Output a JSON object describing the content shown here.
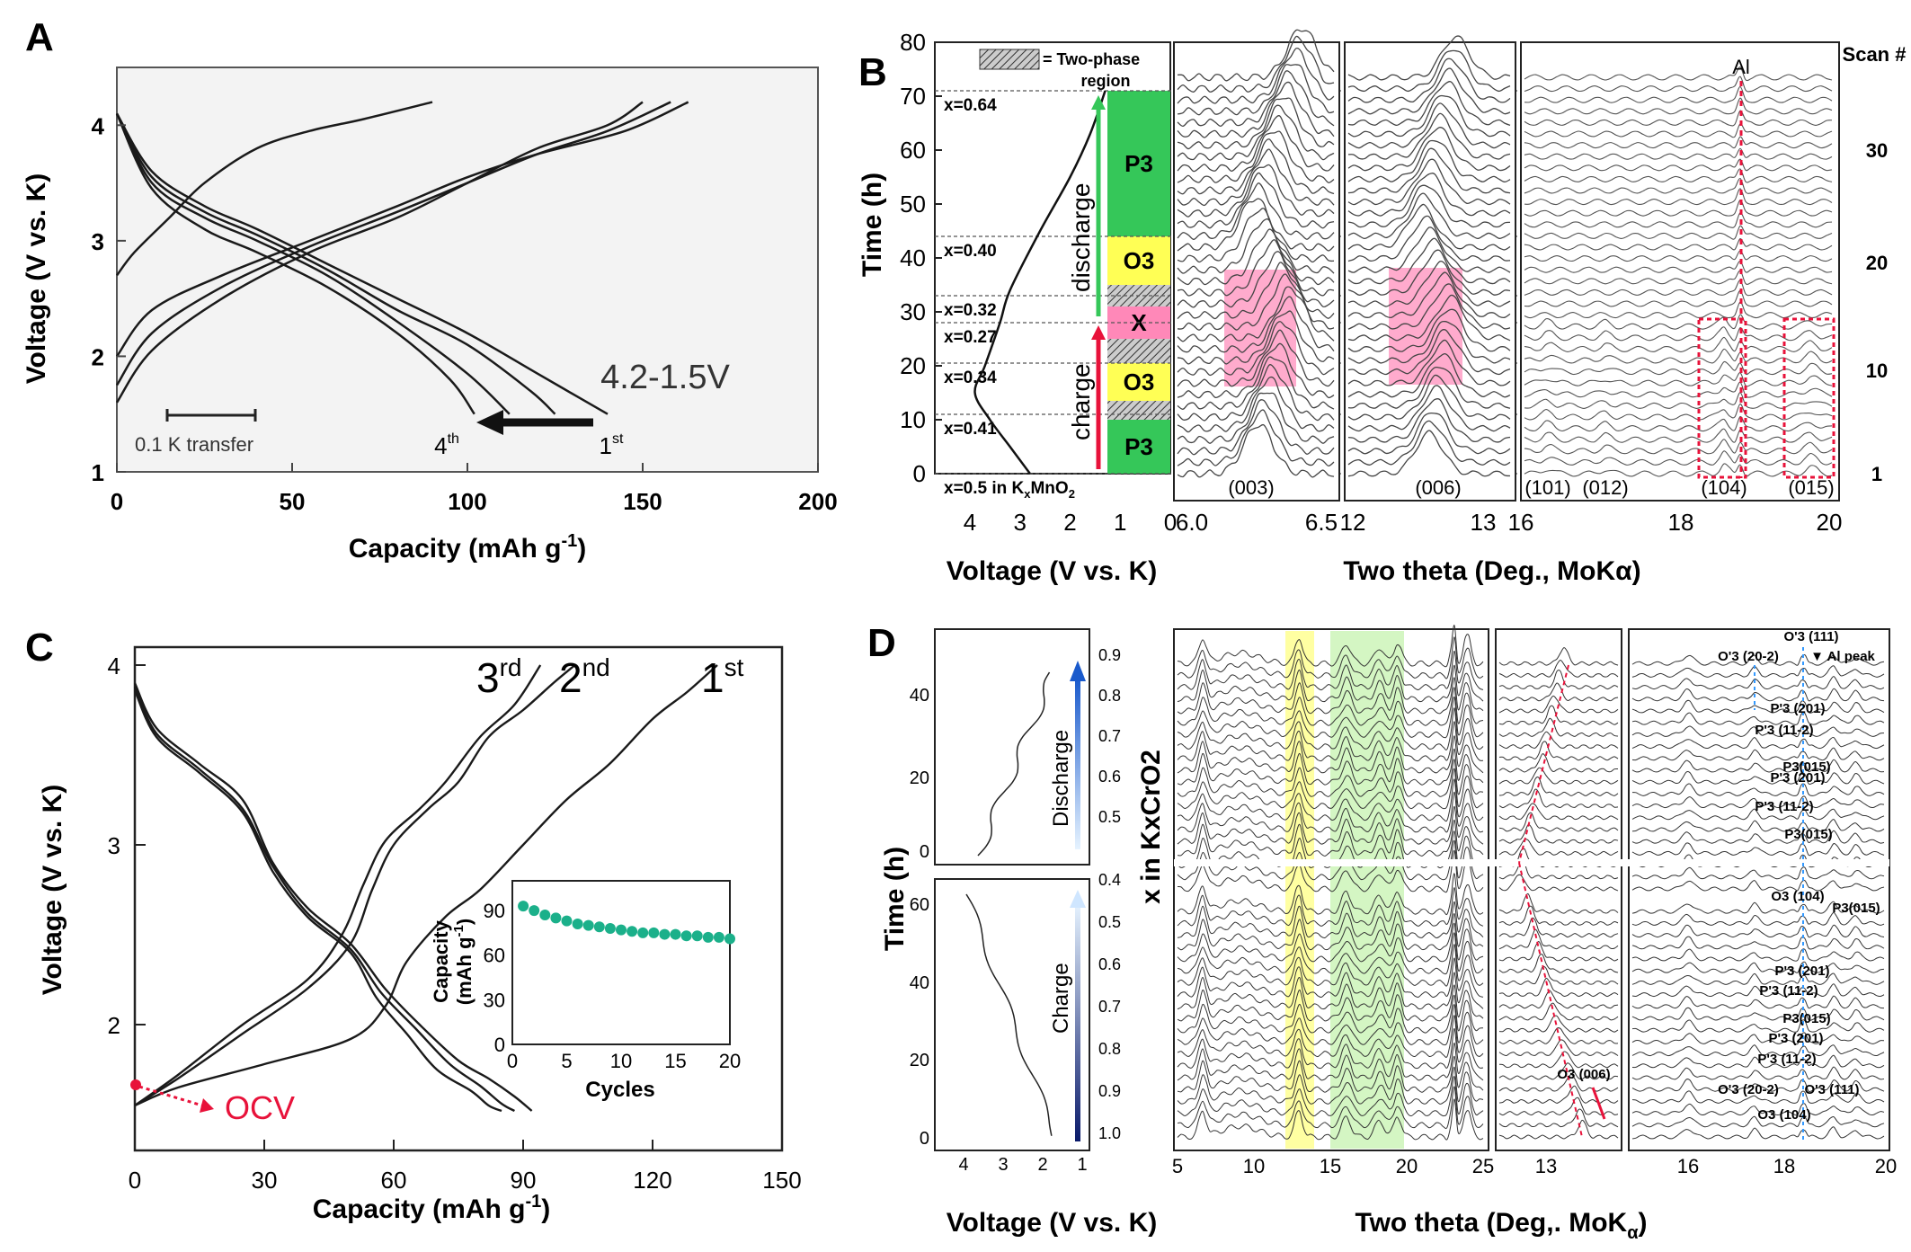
{
  "colors": {
    "line": "#1a1a1a",
    "red": "#e8123a",
    "green": "#35c759",
    "teal": "#1bb08a",
    "pink": "#ff88b8",
    "yellow": "#ffff55",
    "lightgreen": "#aaee88",
    "blue": "#1a5acc"
  },
  "chart_data": [
    {
      "panel": "A",
      "type": "line",
      "title": "",
      "xlabel": "Capacity (mAh g",
      "xlabel_sup": "-1",
      "xlabel_end": ")",
      "ylabel": "Voltage (V vs. K)",
      "xlim": [
        0,
        200
      ],
      "ylim": [
        1,
        4.5
      ],
      "xticks": [
        "0",
        "50",
        "100",
        "150",
        "200"
      ],
      "yticks": [
        "1",
        "2",
        "3",
        "4"
      ],
      "annotation_range": "4.2-1.5V",
      "scale_bar": "0.1 K transfer",
      "cycle_start": "4",
      "cycle_start_sup": "th",
      "cycle_end": "1",
      "cycle_end_sup": "st",
      "series": [
        {
          "name": "1st discharge",
          "x": [
            0,
            10,
            25,
            40,
            60,
            80,
            100,
            120,
            140
          ],
          "y": [
            4.1,
            3.6,
            3.3,
            3.1,
            2.8,
            2.5,
            2.2,
            1.85,
            1.5
          ]
        },
        {
          "name": "2nd discharge",
          "x": [
            0,
            10,
            25,
            40,
            60,
            80,
            100,
            118,
            125
          ],
          "y": [
            4.1,
            3.55,
            3.25,
            3.05,
            2.75,
            2.4,
            2.1,
            1.7,
            1.5
          ]
        },
        {
          "name": "3rd discharge",
          "x": [
            0,
            10,
            25,
            40,
            60,
            80,
            100,
            112
          ],
          "y": [
            4.1,
            3.5,
            3.2,
            3.0,
            2.7,
            2.3,
            1.85,
            1.5
          ]
        },
        {
          "name": "4th discharge",
          "x": [
            0,
            10,
            25,
            40,
            60,
            80,
            95,
            102
          ],
          "y": [
            4.1,
            3.45,
            3.1,
            2.9,
            2.6,
            2.2,
            1.8,
            1.5
          ]
        },
        {
          "name": "1st charge",
          "x": [
            0,
            10,
            30,
            55,
            80,
            100,
            120,
            145,
            163
          ],
          "y": [
            2.0,
            2.4,
            2.7,
            3.0,
            3.3,
            3.55,
            3.75,
            3.95,
            4.2
          ]
        },
        {
          "name": "2nd charge",
          "x": [
            0,
            10,
            30,
            55,
            80,
            100,
            120,
            140,
            158
          ],
          "y": [
            1.75,
            2.2,
            2.6,
            2.95,
            3.25,
            3.5,
            3.75,
            3.95,
            4.2
          ]
        },
        {
          "name": "3rd charge",
          "x": [
            0,
            10,
            30,
            55,
            80,
            100,
            120,
            140,
            150
          ],
          "y": [
            1.6,
            2.05,
            2.5,
            2.9,
            3.2,
            3.5,
            3.8,
            4.0,
            4.2
          ]
        },
        {
          "name": "4th charge",
          "x": [
            0,
            5,
            15,
            25,
            40,
            55,
            70,
            90
          ],
          "y": [
            2.7,
            2.9,
            3.2,
            3.5,
            3.8,
            3.95,
            4.05,
            4.2
          ]
        }
      ]
    },
    {
      "panel": "B",
      "type": "line",
      "ylabel": "Time (h)",
      "xlabel": "Voltage (V vs. K)",
      "xlabel_right": "Two theta (Deg., MoKα)",
      "right_label": "Scan #",
      "ylim": [
        0,
        80
      ],
      "yticks": [
        "0",
        "10",
        "20",
        "30",
        "40",
        "50",
        "60",
        "70",
        "80"
      ],
      "voltage_ticks": [
        "4",
        "3",
        "2",
        "1",
        "0"
      ],
      "legend_two_phase": "= Two-phase",
      "legend_region": "region",
      "x_labels": [
        "x=0.64",
        "x=0.40",
        "x=0.32",
        "x=0.27",
        "x=0.34",
        "x=0.41",
        "x=0.5 in K"
      ],
      "x_label_sub": "x",
      "x_label_tail": "MnO",
      "x_label_tail_sub": "2",
      "x_markers_time": [
        71,
        44,
        33,
        28,
        20.5,
        11,
        0
      ],
      "phases": [
        {
          "label": "P3",
          "from": 0,
          "to": 10
        },
        {
          "label": "O3",
          "from": 13.5,
          "to": 20.5
        },
        {
          "label": "X",
          "from": 25,
          "to": 31
        },
        {
          "label": "O3",
          "from": 35,
          "to": 44
        },
        {
          "label": "P3",
          "from": 44,
          "to": 71
        }
      ],
      "charge_label": "charge",
      "discharge_label": "discharge",
      "voltage_curve": {
        "v": [
          2.8,
          3.2,
          3.6,
          3.9,
          3.7,
          3.4,
          3.2,
          2.6,
          2.0,
          1.6,
          1.3
        ],
        "t": [
          0,
          5,
          10,
          15,
          20,
          28,
          34,
          45,
          55,
          63,
          71
        ]
      },
      "subplots": [
        {
          "xticks": [
            "6.0",
            "6.5"
          ],
          "peak": "(003)"
        },
        {
          "xticks": [
            "12",
            "13"
          ],
          "peak": "(006)"
        },
        {
          "xticks": [
            "16",
            "18",
            "20"
          ],
          "peaks": [
            "(101)",
            "(012)",
            "(104)",
            "(015)"
          ],
          "marker": "Al"
        }
      ],
      "scan_ticks": [
        "30",
        "20",
        "10",
        "1"
      ]
    },
    {
      "panel": "C",
      "type": "line",
      "xlabel": "Capacity (mAh g",
      "xlabel_sup": "-1",
      "xlabel_end": ")",
      "ylabel": "Voltage (V vs. K)",
      "xlim": [
        0,
        150
      ],
      "ylim": [
        1.3,
        4.1
      ],
      "xticks": [
        "0",
        "30",
        "60",
        "90",
        "120",
        "150"
      ],
      "yticks": [
        "2",
        "3",
        "4"
      ],
      "ocv_label": "OCV",
      "cycle_labels": [
        {
          "n": "3",
          "sup": "rd"
        },
        {
          "n": "2",
          "sup": "nd"
        },
        {
          "n": "1",
          "sup": "st"
        }
      ],
      "series": [
        {
          "name": "1st charge",
          "x": [
            0,
            10,
            30,
            50,
            58,
            63,
            72,
            80,
            90,
            100,
            110,
            120,
            128,
            135
          ],
          "y": [
            1.55,
            1.65,
            1.78,
            1.92,
            2.1,
            2.35,
            2.6,
            2.75,
            3.0,
            3.25,
            3.45,
            3.7,
            3.85,
            4.0
          ]
        },
        {
          "name": "2nd charge",
          "x": [
            0,
            10,
            25,
            40,
            50,
            55,
            60,
            68,
            75,
            82,
            90,
            97,
            102
          ],
          "y": [
            1.55,
            1.7,
            1.95,
            2.2,
            2.45,
            2.75,
            3.0,
            3.2,
            3.35,
            3.6,
            3.75,
            3.9,
            4.0
          ]
        },
        {
          "name": "3rd charge",
          "x": [
            0,
            10,
            25,
            40,
            48,
            53,
            58,
            66,
            72,
            80,
            88,
            94
          ],
          "y": [
            1.55,
            1.72,
            2.0,
            2.25,
            2.5,
            2.78,
            3.02,
            3.2,
            3.35,
            3.6,
            3.78,
            4.0
          ]
        },
        {
          "name": "1st discharge",
          "x": [
            0,
            5,
            15,
            25,
            32,
            40,
            50,
            58,
            66,
            75,
            82,
            88,
            92
          ],
          "y": [
            3.9,
            3.65,
            3.45,
            3.25,
            2.9,
            2.65,
            2.45,
            2.2,
            2.0,
            1.8,
            1.7,
            1.6,
            1.52
          ]
        },
        {
          "name": "2nd discharge",
          "x": [
            0,
            5,
            15,
            25,
            32,
            40,
            50,
            57,
            65,
            73,
            80,
            85,
            88
          ],
          "y": [
            3.88,
            3.62,
            3.42,
            3.2,
            2.88,
            2.62,
            2.42,
            2.18,
            1.98,
            1.78,
            1.66,
            1.56,
            1.52
          ]
        },
        {
          "name": "3rd discharge",
          "x": [
            0,
            5,
            15,
            25,
            32,
            40,
            50,
            56,
            63,
            70,
            78,
            82,
            85
          ],
          "y": [
            3.86,
            3.6,
            3.4,
            3.18,
            2.85,
            2.6,
            2.4,
            2.15,
            1.95,
            1.75,
            1.63,
            1.55,
            1.52
          ]
        }
      ],
      "inset": {
        "xlabel": "Cycles",
        "ylabel": "Capacity",
        "ylabel2": "(mAh g",
        "ylabel2_sup": "-1",
        "ylabel2_end": ")",
        "xticks": [
          "0",
          "5",
          "10",
          "15",
          "20"
        ],
        "yticks": [
          "0",
          "30",
          "60",
          "90"
        ],
        "xlim": [
          0,
          20
        ],
        "ylim": [
          0,
          110
        ],
        "x": [
          1,
          2,
          3,
          4,
          5,
          6,
          7,
          8,
          9,
          10,
          11,
          12,
          13,
          14,
          15,
          16,
          17,
          18,
          19,
          20
        ],
        "y": [
          93,
          90,
          87,
          85,
          83,
          81,
          80,
          79,
          78,
          77,
          76,
          75,
          75,
          74,
          74,
          73,
          73,
          72,
          72,
          71
        ]
      }
    },
    {
      "panel": "D",
      "type": "line",
      "ylabel": "Time (h)",
      "ylabel2": "x in KxCrO2",
      "xlabel": "Voltage (V vs. K)",
      "xlabel_right": "Two theta (Deg,. MoK",
      "xlabel_right_sub": "α",
      "xlabel_right_end": ")",
      "top": {
        "label": "Discharge",
        "yticks": [
          "0",
          "20",
          "40"
        ],
        "xticks_values": [
          "0.9",
          "0.8",
          "0.7",
          "0.6",
          "0.5"
        ]
      },
      "bottom": {
        "label": "Charge",
        "yticks": [
          "0",
          "20",
          "40",
          "60"
        ],
        "xticks": [
          "4",
          "3",
          "2",
          "1"
        ],
        "xticks_values": [
          "0.4",
          "0.5",
          "0.6",
          "0.7",
          "0.8",
          "0.9",
          "1.0"
        ]
      },
      "subplot1_xticks": [
        "5",
        "10",
        "15",
        "20",
        "25"
      ],
      "subplot2_xticks": [
        "13"
      ],
      "subplot2_peak": "O3 (006)",
      "subplot3_xticks": [
        "16",
        "18",
        "20"
      ],
      "subplot3_peaks": [
        "O'3 (20-2)",
        "O'3 (111)",
        "▼ Al peak",
        "P'3 (201)",
        "P'3 (11-2)",
        "P3(015)",
        "P'3 (201)",
        "P'3 (11-2)",
        "P3(015)",
        "O3 (104)",
        "P3(015)",
        "P'3 (201)",
        "P'3 (11-2)",
        "P3(015)",
        "P'3 (201)",
        "P'3 (11-2)",
        "O'3 (20-2)",
        "O'3 (111)",
        "O3 (104)"
      ]
    }
  ],
  "panel_labels": [
    "A",
    "B",
    "C",
    "D"
  ]
}
